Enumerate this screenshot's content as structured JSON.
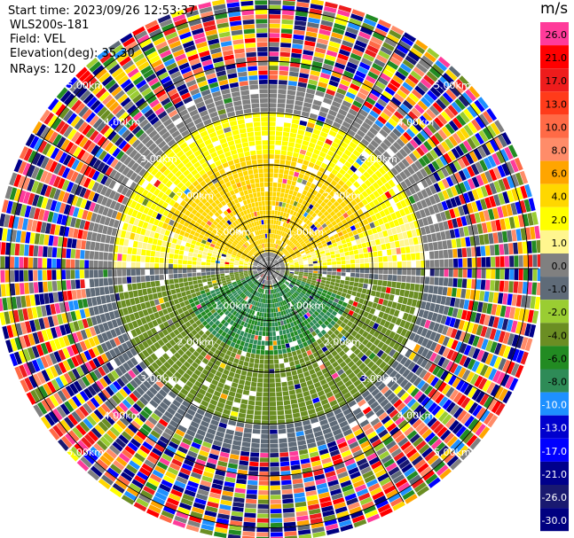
{
  "header": {
    "start_time": "Start time: 2023/09/26 12:53:37",
    "instrument": "WLS200s-181",
    "field": "Field: VEL",
    "elevation": "Elevation(deg): 35.30",
    "nrays": "NRays: 120"
  },
  "chart_data": {
    "type": "heatmap",
    "subtype": "polar-ppi",
    "title": "",
    "field": "VEL",
    "nrays": 120,
    "range_rings_km": [
      1.0,
      2.0,
      3.0,
      4.0,
      5.0
    ],
    "range_labels": [
      "1.00km",
      "2.00km",
      "3.00km",
      "4.00km",
      "5.00km"
    ],
    "azimuth_lines_deg": [
      0,
      30,
      60,
      90,
      120,
      150,
      180,
      210,
      240,
      270,
      300,
      330
    ],
    "colorbar": {
      "unit": "m/s",
      "tick_labels": [
        "26.0",
        "21.0",
        "17.0",
        "13.0",
        "10.0",
        "8.0",
        "6.0",
        "4.0",
        "2.0",
        "1.0",
        "0.0",
        "-1.0",
        "-2.0",
        "-4.0",
        "-6.0",
        "-8.0",
        "-10.0",
        "-13.0",
        "-17.0",
        "-21.0",
        "-26.0",
        "-30.0"
      ],
      "colors": [
        "#ff3b9a",
        "#ff0000",
        "#ee1c1c",
        "#ff3b1a",
        "#ff6a46",
        "#ff8c69",
        "#ffa500",
        "#ffd700",
        "#ffff00",
        "#fff68f",
        "#808080",
        "#5f6b78",
        "#9acd32",
        "#6b8e23",
        "#228b22",
        "#2e8b57",
        "#1e90ff",
        "#0000cd",
        "#0000ff",
        "#00008b",
        "#191970",
        "#000080"
      ]
    },
    "velocity_structure": [
      {
        "region": "north, 0.3-2.2 km",
        "value_ms": 4.0
      },
      {
        "region": "north, 2.2-3.0 km",
        "value_ms": 2.0
      },
      {
        "region": "south, 0.3-1.6 km",
        "value_ms": -6.0
      },
      {
        "region": "south, 1.6-3.0 km",
        "value_ms": -2.0
      },
      {
        "region": "east/west, 0.3-3.0 km",
        "value_ms": 0.0
      },
      {
        "region": "3.0-3.5 km ring",
        "value_ms": 0.0
      },
      {
        "region": "beyond 3.5 km",
        "value_ms": null,
        "note": "noise"
      }
    ]
  }
}
